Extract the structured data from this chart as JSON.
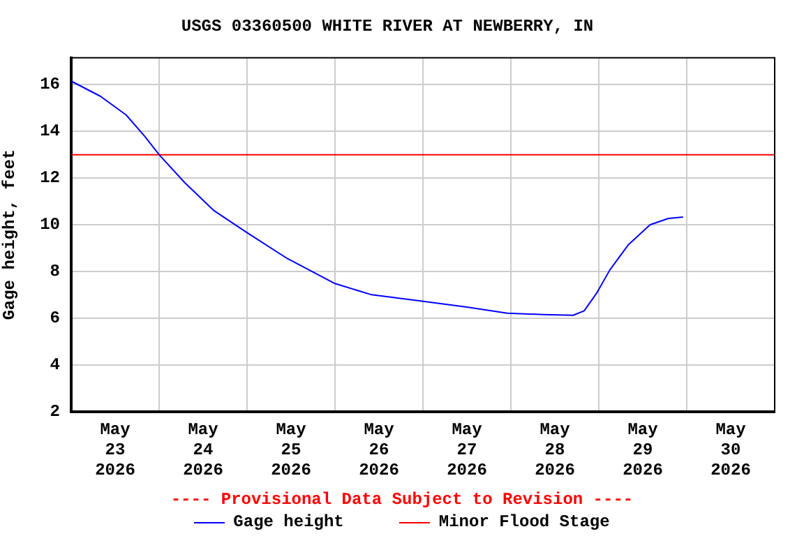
{
  "chart_data": {
    "type": "line",
    "title": "USGS 03360500 WHITE RIVER AT NEWBERRY, IN",
    "ylabel": "Gage height, feet",
    "annotations": [
      "---- Provisional Data Subject to Revision ----"
    ],
    "series": [
      {
        "name": "Gage height",
        "color": "#0000ff",
        "x": [
          "2026-05-23T00:00",
          "2026-05-23T08:00",
          "2026-05-23T15:00",
          "2026-05-23T20:00",
          "2026-05-24T00:00",
          "2026-05-24T07:00",
          "2026-05-24T15:00",
          "2026-05-25T00:00",
          "2026-05-25T11:00",
          "2026-05-26T00:00",
          "2026-05-26T10:00",
          "2026-05-26T23:00",
          "2026-05-27T12:00",
          "2026-05-27T23:00",
          "2026-05-28T09:00",
          "2026-05-28T17:00",
          "2026-05-28T20:00",
          "2026-05-28T23:30",
          "2026-05-29T03:00",
          "2026-05-29T08:00",
          "2026-05-29T14:00",
          "2026-05-29T19:00",
          "2026-05-29T23:00"
        ],
        "values": [
          16.15,
          15.5,
          14.7,
          13.8,
          13.0,
          11.8,
          10.6,
          9.66,
          8.55,
          7.48,
          7.0,
          6.74,
          6.47,
          6.21,
          6.15,
          6.12,
          6.31,
          7.09,
          8.06,
          9.13,
          10.0,
          10.27,
          10.33
        ]
      }
    ],
    "ref_lines": [
      {
        "axis": "y",
        "value": 13,
        "label": "Minor Flood Stage",
        "color": "#ff0000"
      }
    ],
    "xlim": [
      "2026-05-23T00:00",
      "2026-05-31T00:00"
    ],
    "xticks": [
      {
        "value": "2026-05-23T00:00",
        "label": null
      },
      {
        "value": "2026-05-23T12:00",
        "label": "May 23 2026"
      },
      {
        "value": "2026-05-24T00:00",
        "label": null
      },
      {
        "value": "2026-05-24T12:00",
        "label": "May 24 2026"
      },
      {
        "value": "2026-05-25T00:00",
        "label": null
      },
      {
        "value": "2026-05-25T12:00",
        "label": "May 25 2026"
      },
      {
        "value": "2026-05-26T00:00",
        "label": null
      },
      {
        "value": "2026-05-26T12:00",
        "label": "May 26 2026"
      },
      {
        "value": "2026-05-27T00:00",
        "label": null
      },
      {
        "value": "2026-05-27T12:00",
        "label": "May 27 2026"
      },
      {
        "value": "2026-05-28T00:00",
        "label": null
      },
      {
        "value": "2026-05-28T12:00",
        "label": "May 28 2026"
      },
      {
        "value": "2026-05-29T00:00",
        "label": null
      },
      {
        "value": "2026-05-29T12:00",
        "label": "May 29 2026"
      },
      {
        "value": "2026-05-30T00:00",
        "label": null
      },
      {
        "value": "2026-05-30T12:00",
        "label": "May 30 2026"
      },
      {
        "value": "2026-05-31T00:00",
        "label": null
      }
    ],
    "ylim": [
      2,
      17.15
    ],
    "yticks": [
      2,
      4,
      6,
      8,
      10,
      12,
      14,
      16
    ],
    "grid": true,
    "legend": "bottom",
    "marker": "none",
    "line_style": "solid"
  }
}
